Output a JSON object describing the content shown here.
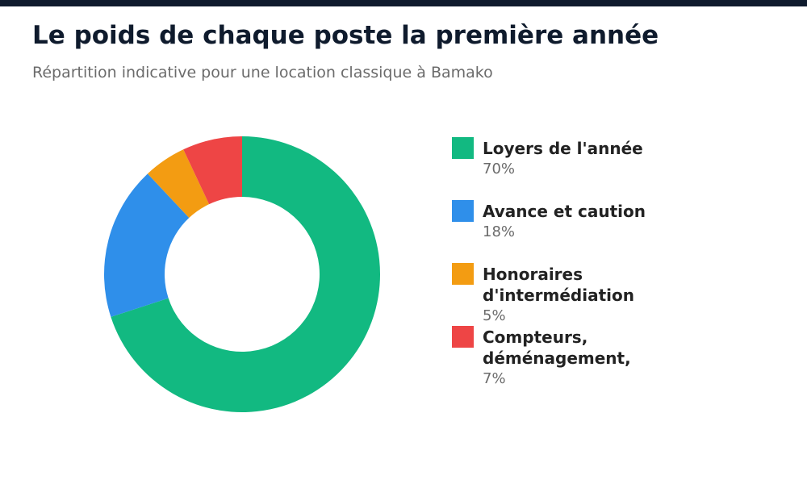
{
  "header": {
    "title": "Le poids de chaque poste la première année",
    "subtitle": "Répartition indicative pour une location classique à Bamako"
  },
  "chart_data": {
    "type": "pie",
    "variant": "donut",
    "categories": [
      "Loyers de l'année",
      "Avance et caution",
      "Honoraires d'intermédiation",
      "Compteurs, déménagement,"
    ],
    "values": [
      70,
      18,
      5,
      7
    ],
    "unit": "%",
    "colors": [
      "#12b981",
      "#2f8fea",
      "#f39c12",
      "#ee4545"
    ],
    "legend_position": "right"
  },
  "legend": {
    "items": [
      {
        "label": "Loyers de l'année",
        "value": "70%",
        "color": "#12b981"
      },
      {
        "label": "Avance et caution",
        "value": "18%",
        "color": "#2f8fea"
      },
      {
        "label": "Honoraires d'intermédiation",
        "value": "5%",
        "color": "#f39c12"
      },
      {
        "label": "Compteurs, déménagement,",
        "value": "7%",
        "color": "#ee4545"
      }
    ]
  }
}
